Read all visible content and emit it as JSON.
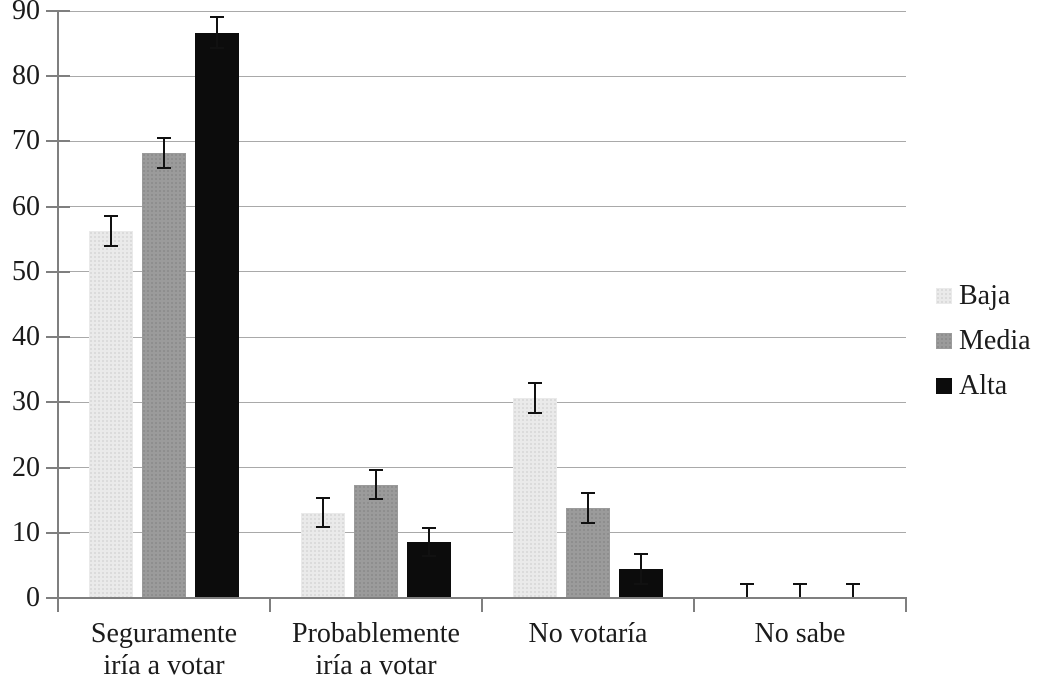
{
  "chart_data": {
    "type": "bar",
    "title": "",
    "categories": [
      "Seguramente iría a votar",
      "Probablemente iría a votar",
      "No votaría",
      "No sabe"
    ],
    "categories_lines": [
      [
        "Seguramente",
        "iría a votar"
      ],
      [
        "Probablemente",
        "iría a votar"
      ],
      [
        "No votaría"
      ],
      [
        "No sabe"
      ]
    ],
    "series": [
      {
        "name": "Baja",
        "color": "#eaeaea",
        "dot_color": "#d6d6d6",
        "values": [
          56.2,
          13.1,
          30.7,
          0.2
        ],
        "errors": [
          2.3,
          2.2,
          2.3,
          2.0
        ]
      },
      {
        "name": "Media",
        "color": "#9b9b9b",
        "dot_color": "#8a8a8a",
        "values": [
          68.3,
          17.4,
          13.8,
          0.2
        ],
        "errors": [
          2.3,
          2.2,
          2.3,
          2.0
        ]
      },
      {
        "name": "Alta",
        "color": "#0c0c0c",
        "dot_color": "#0c0c0c",
        "values": [
          86.7,
          8.6,
          4.4,
          0.2
        ],
        "errors": [
          2.4,
          2.2,
          2.3,
          2.0
        ]
      }
    ],
    "ylim": [
      0,
      90
    ],
    "ytick_step": 10,
    "yticks": [
      "0",
      "10",
      "20",
      "30",
      "40",
      "50",
      "60",
      "70",
      "80",
      "90"
    ],
    "grid": true,
    "legend_position": "right",
    "grid_color": "#a9a9a9",
    "axis_color": "#7f7f7f",
    "error_color": "#111111",
    "text_color": "#1b1b1b",
    "background": "#ffffff"
  }
}
